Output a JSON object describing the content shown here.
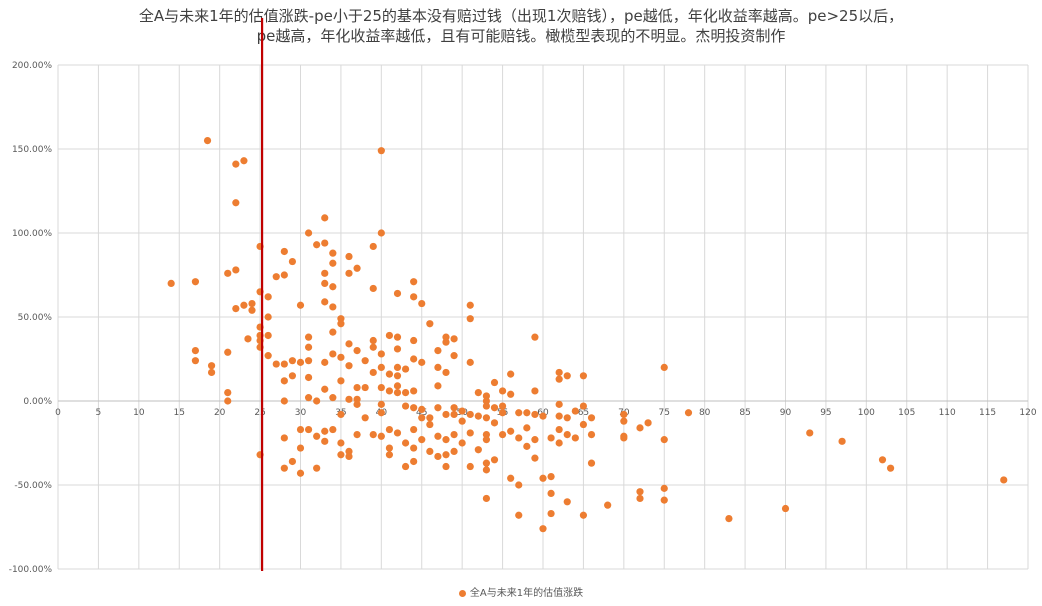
{
  "chart_data": {
    "type": "scatter",
    "title_line1": "全A与未来1年的估值涨跌-pe小于25的基本没有赔过钱（出现1次赔钱），pe越低，年化收益率越高。pe>25以后，",
    "title_line2": "pe越高，年化收益率越低，且有可能赔钱。橄榄型表现的不明显。杰明投资制作",
    "xlim": [
      0,
      120
    ],
    "ylim": [
      -1,
      2
    ],
    "x_ticks": [
      "0",
      "5",
      "10",
      "15",
      "20",
      "25",
      "30",
      "35",
      "40",
      "45",
      "50",
      "55",
      "60",
      "65",
      "70",
      "75",
      "80",
      "85",
      "90",
      "95",
      "100",
      "105",
      "110",
      "115",
      "120"
    ],
    "y_ticks": [
      "200.00%",
      "150.00%",
      "100.00%",
      "50.00%",
      "0.00%",
      "-50.00%",
      "-100.00%"
    ],
    "grid": "vertical and horizontal",
    "legend_position": "bottom",
    "reference_line": {
      "x": 25,
      "color": "#C00000"
    },
    "marker_color": "#ED7D31",
    "series": [
      {
        "name": "全A与未来1年的估值涨跌",
        "points": [
          [
            14,
            0.7
          ],
          [
            17,
            0.71
          ],
          [
            17,
            0.3
          ],
          [
            17,
            0.24
          ],
          [
            18.5,
            1.55
          ],
          [
            19,
            0.21
          ],
          [
            19,
            0.17
          ],
          [
            21,
            0.76
          ],
          [
            21,
            0.29
          ],
          [
            21,
            0.05
          ],
          [
            21,
            0.0
          ],
          [
            22,
            1.41
          ],
          [
            22,
            1.18
          ],
          [
            22,
            0.78
          ],
          [
            22,
            0.55
          ],
          [
            23,
            1.43
          ],
          [
            23,
            0.57
          ],
          [
            23.5,
            0.37
          ],
          [
            24,
            0.58
          ],
          [
            24,
            0.54
          ],
          [
            25,
            0.92
          ],
          [
            25,
            0.65
          ],
          [
            25,
            0.44
          ],
          [
            25,
            0.39
          ],
          [
            25,
            0.36
          ],
          [
            25,
            0.32
          ],
          [
            25,
            -0.32
          ],
          [
            26,
            0.62
          ],
          [
            26,
            0.5
          ],
          [
            26,
            0.39
          ],
          [
            26,
            0.27
          ],
          [
            27,
            0.74
          ],
          [
            27,
            0.22
          ],
          [
            28,
            0.89
          ],
          [
            28,
            0.75
          ],
          [
            28,
            0.22
          ],
          [
            28,
            0.12
          ],
          [
            28,
            0.0
          ],
          [
            28,
            -0.22
          ],
          [
            28,
            -0.4
          ],
          [
            29,
            0.83
          ],
          [
            29,
            0.24
          ],
          [
            29,
            0.15
          ],
          [
            29,
            -0.36
          ],
          [
            30,
            0.57
          ],
          [
            30,
            0.23
          ],
          [
            30,
            -0.17
          ],
          [
            30,
            -0.28
          ],
          [
            30,
            -0.43
          ],
          [
            31,
            1.0
          ],
          [
            31,
            0.38
          ],
          [
            31,
            0.32
          ],
          [
            31,
            0.24
          ],
          [
            31,
            0.14
          ],
          [
            31,
            0.02
          ],
          [
            31,
            -0.17
          ],
          [
            32,
            0.93
          ],
          [
            32,
            0.0
          ],
          [
            32,
            -0.21
          ],
          [
            32,
            -0.4
          ],
          [
            33,
            1.09
          ],
          [
            33,
            0.94
          ],
          [
            33,
            0.76
          ],
          [
            33,
            0.7
          ],
          [
            33,
            0.59
          ],
          [
            33,
            0.23
          ],
          [
            33,
            0.07
          ],
          [
            33,
            -0.18
          ],
          [
            33,
            -0.24
          ],
          [
            34,
            0.88
          ],
          [
            34,
            0.82
          ],
          [
            34,
            0.68
          ],
          [
            34,
            0.56
          ],
          [
            34,
            0.41
          ],
          [
            34,
            0.28
          ],
          [
            34,
            0.02
          ],
          [
            34,
            -0.17
          ],
          [
            35,
            0.49
          ],
          [
            35,
            0.46
          ],
          [
            35,
            0.26
          ],
          [
            35,
            0.12
          ],
          [
            35,
            -0.08
          ],
          [
            35,
            -0.25
          ],
          [
            35,
            -0.32
          ],
          [
            36,
            0.86
          ],
          [
            36,
            0.76
          ],
          [
            36,
            0.34
          ],
          [
            36,
            0.21
          ],
          [
            36,
            0.01
          ],
          [
            36,
            -0.3
          ],
          [
            36,
            -0.33
          ],
          [
            37,
            0.79
          ],
          [
            37,
            0.3
          ],
          [
            37,
            0.08
          ],
          [
            37,
            0.01
          ],
          [
            37,
            -0.02
          ],
          [
            37,
            -0.2
          ],
          [
            38,
            0.24
          ],
          [
            38,
            0.08
          ],
          [
            38,
            -0.1
          ],
          [
            39,
            0.92
          ],
          [
            39,
            0.67
          ],
          [
            39,
            0.36
          ],
          [
            39,
            0.32
          ],
          [
            39,
            0.17
          ],
          [
            39,
            -0.2
          ],
          [
            40,
            1.49
          ],
          [
            40,
            1.0
          ],
          [
            40,
            0.28
          ],
          [
            40,
            0.2
          ],
          [
            40,
            0.08
          ],
          [
            40,
            -0.02
          ],
          [
            40,
            -0.07
          ],
          [
            40,
            -0.21
          ],
          [
            41,
            0.39
          ],
          [
            41,
            0.16
          ],
          [
            41,
            0.06
          ],
          [
            41,
            -0.17
          ],
          [
            41,
            -0.28
          ],
          [
            41,
            -0.32
          ],
          [
            42,
            0.64
          ],
          [
            42,
            0.38
          ],
          [
            42,
            0.31
          ],
          [
            42,
            0.2
          ],
          [
            42,
            0.15
          ],
          [
            42,
            0.09
          ],
          [
            42,
            0.05
          ],
          [
            42,
            -0.19
          ],
          [
            43,
            0.19
          ],
          [
            43,
            0.05
          ],
          [
            43,
            -0.03
          ],
          [
            43,
            -0.25
          ],
          [
            43,
            -0.39
          ],
          [
            44,
            0.71
          ],
          [
            44,
            0.62
          ],
          [
            44,
            0.36
          ],
          [
            44,
            0.25
          ],
          [
            44,
            0.06
          ],
          [
            44,
            -0.04
          ],
          [
            44,
            -0.17
          ],
          [
            44,
            -0.28
          ],
          [
            44,
            -0.36
          ],
          [
            45,
            0.58
          ],
          [
            45,
            0.23
          ],
          [
            45,
            -0.05
          ],
          [
            45,
            -0.1
          ],
          [
            45,
            -0.23
          ],
          [
            46,
            0.46
          ],
          [
            46,
            -0.1
          ],
          [
            46,
            -0.14
          ],
          [
            46,
            -0.3
          ],
          [
            47,
            0.3
          ],
          [
            47,
            0.2
          ],
          [
            47,
            0.09
          ],
          [
            47,
            -0.04
          ],
          [
            47,
            -0.21
          ],
          [
            47,
            -0.33
          ],
          [
            48,
            0.38
          ],
          [
            48,
            0.35
          ],
          [
            48,
            0.17
          ],
          [
            48,
            -0.08
          ],
          [
            48,
            -0.23
          ],
          [
            48,
            -0.32
          ],
          [
            48,
            -0.39
          ],
          [
            49,
            0.37
          ],
          [
            49,
            0.27
          ],
          [
            49,
            -0.04
          ],
          [
            49,
            -0.08
          ],
          [
            49,
            -0.2
          ],
          [
            49,
            -0.3
          ],
          [
            50,
            -0.06
          ],
          [
            50,
            -0.12
          ],
          [
            50,
            -0.25
          ],
          [
            51,
            0.57
          ],
          [
            51,
            0.49
          ],
          [
            51,
            0.23
          ],
          [
            51,
            -0.08
          ],
          [
            51,
            -0.19
          ],
          [
            51,
            -0.39
          ],
          [
            52,
            0.05
          ],
          [
            52,
            -0.09
          ],
          [
            52,
            -0.29
          ],
          [
            53,
            0.03
          ],
          [
            53,
            0.0
          ],
          [
            53,
            -0.03
          ],
          [
            53,
            -0.1
          ],
          [
            53,
            -0.2
          ],
          [
            53,
            -0.23
          ],
          [
            53,
            -0.37
          ],
          [
            53,
            -0.41
          ],
          [
            53,
            -0.58
          ],
          [
            54,
            0.11
          ],
          [
            54,
            -0.04
          ],
          [
            54,
            -0.13
          ],
          [
            54,
            -0.35
          ],
          [
            55,
            0.06
          ],
          [
            55,
            -0.03
          ],
          [
            55,
            -0.07
          ],
          [
            55,
            -0.2
          ],
          [
            56,
            0.16
          ],
          [
            56,
            0.04
          ],
          [
            56,
            -0.18
          ],
          [
            56,
            -0.46
          ],
          [
            57,
            -0.07
          ],
          [
            57,
            -0.22
          ],
          [
            57,
            -0.5
          ],
          [
            57,
            -0.68
          ],
          [
            58,
            -0.07
          ],
          [
            58,
            -0.16
          ],
          [
            58,
            -0.27
          ],
          [
            59,
            0.06
          ],
          [
            59,
            0.38
          ],
          [
            59,
            -0.08
          ],
          [
            59,
            -0.23
          ],
          [
            59,
            -0.34
          ],
          [
            60,
            -0.09
          ],
          [
            60,
            -0.46
          ],
          [
            60,
            -0.76
          ],
          [
            61,
            -0.22
          ],
          [
            61,
            -0.45
          ],
          [
            61,
            -0.55
          ],
          [
            61,
            -0.67
          ],
          [
            62,
            0.17
          ],
          [
            62,
            0.13
          ],
          [
            62,
            -0.02
          ],
          [
            62,
            -0.09
          ],
          [
            62,
            -0.17
          ],
          [
            62,
            -0.25
          ],
          [
            63,
            0.15
          ],
          [
            63,
            -0.1
          ],
          [
            63,
            -0.2
          ],
          [
            63,
            -0.6
          ],
          [
            64,
            -0.06
          ],
          [
            64,
            -0.22
          ],
          [
            65,
            0.15
          ],
          [
            65,
            -0.03
          ],
          [
            65,
            -0.14
          ],
          [
            65,
            -0.68
          ],
          [
            66,
            -0.1
          ],
          [
            66,
            -0.2
          ],
          [
            66,
            -0.37
          ],
          [
            68,
            -0.62
          ],
          [
            70,
            -0.08
          ],
          [
            70,
            -0.12
          ],
          [
            70,
            -0.21
          ],
          [
            70,
            -0.22
          ],
          [
            72,
            -0.16
          ],
          [
            72,
            -0.54
          ],
          [
            72,
            -0.58
          ],
          [
            73,
            -0.13
          ],
          [
            75,
            0.2
          ],
          [
            75,
            -0.23
          ],
          [
            75,
            -0.52
          ],
          [
            75,
            -0.59
          ],
          [
            78,
            -0.07
          ],
          [
            83,
            -0.7
          ],
          [
            90,
            -0.64
          ],
          [
            93,
            -0.19
          ],
          [
            97,
            -0.24
          ],
          [
            102,
            -0.35
          ],
          [
            103,
            -0.4
          ],
          [
            117,
            -0.47
          ]
        ]
      }
    ]
  }
}
